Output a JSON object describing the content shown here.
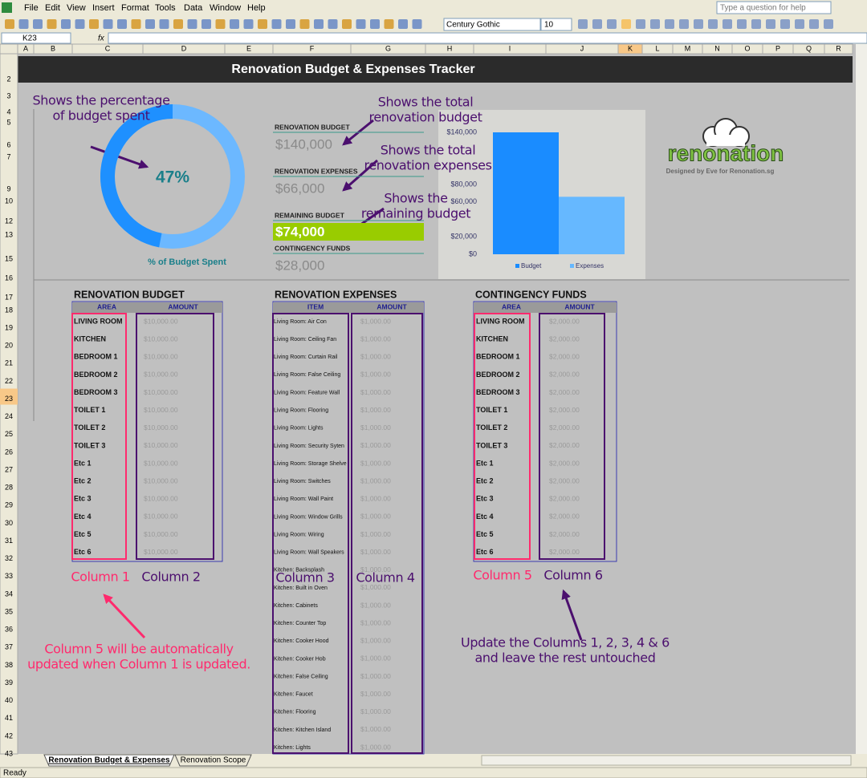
{
  "window": {
    "menu": [
      "File",
      "Edit",
      "View",
      "Insert",
      "Format",
      "Tools",
      "Data",
      "Window",
      "Help"
    ],
    "help_box": "Type a question for help",
    "font_name": "Century Gothic",
    "font_size": "10",
    "name_box": "K23",
    "formula_icon": "fx",
    "status": "Ready",
    "sheet_tabs": [
      "Renovation Budget & Expenses",
      "Renovation Scope"
    ]
  },
  "columns": [
    "A",
    "B",
    "C",
    "D",
    "E",
    "F",
    "G",
    "H",
    "I",
    "J",
    "K",
    "L",
    "M",
    "N",
    "O",
    "P",
    "Q",
    "R"
  ],
  "rows": [
    2,
    3,
    4,
    5,
    6,
    7,
    9,
    10,
    12,
    13,
    15,
    16,
    17,
    18,
    19,
    20,
    21,
    22,
    23,
    24,
    25,
    26,
    27,
    28,
    29,
    30,
    31,
    32,
    33,
    34,
    35,
    36,
    37,
    38,
    39,
    40,
    41,
    42,
    43
  ],
  "title": "Renovation Budget & Expenses Tracker",
  "donut": {
    "value": 47,
    "label": "47%",
    "caption": "% of Budget Spent",
    "color": "#1e90ff",
    "rest_color": "#6cb8ff"
  },
  "summary": [
    {
      "label": "RENOVATION BUDGET",
      "value": "$140,000"
    },
    {
      "label": "RENOVATION EXPENSES",
      "value": "$66,000"
    },
    {
      "label": "REMAINING BUDGET",
      "value": "$74,000"
    },
    {
      "label": "CONTINGENCY FUNDS",
      "value": "$28,000"
    }
  ],
  "bar_chart": {
    "series": [
      {
        "name": "Budget",
        "color": "#1a8cff",
        "value": 140000
      },
      {
        "name": "Expenses",
        "color": "#66b8ff",
        "value": 66000
      }
    ],
    "ylim": [
      0,
      140000
    ],
    "yticks": [
      {
        "value": 0,
        "label": "$0"
      },
      {
        "value": 20000,
        "label": "$20,000"
      },
      {
        "value": 60000,
        "label": "$60,000"
      },
      {
        "value": 80000,
        "label": "$80,000"
      },
      {
        "value": 140000,
        "label": "$140,000"
      }
    ]
  },
  "logo": {
    "name": "renonation",
    "credit": "Designed by Eve for Renonation.sg"
  },
  "tables": [
    {
      "title": "RENOVATION BUDGET",
      "headers": [
        "AREA",
        "AMOUNT"
      ],
      "rows": [
        [
          "LIVING ROOM",
          "$10,000.00"
        ],
        [
          "KITCHEN",
          "$10,000.00"
        ],
        [
          "BEDROOM 1",
          "$10,000.00"
        ],
        [
          "BEDROOM 2",
          "$10,000.00"
        ],
        [
          "BEDROOM 3",
          "$10,000.00"
        ],
        [
          "TOILET 1",
          "$10,000.00"
        ],
        [
          "TOILET 2",
          "$10,000.00"
        ],
        [
          "TOILET 3",
          "$10,000.00"
        ],
        [
          "Etc 1",
          "$10,000.00"
        ],
        [
          "Etc 2",
          "$10,000.00"
        ],
        [
          "Etc 3",
          "$10,000.00"
        ],
        [
          "Etc 4",
          "$10,000.00"
        ],
        [
          "Etc 5",
          "$10,000.00"
        ],
        [
          "Etc 6",
          "$10,000.00"
        ]
      ]
    },
    {
      "title": "RENOVATION EXPENSES",
      "headers": [
        "ITEM",
        "AMOUNT"
      ],
      "rows": [
        [
          "Living Room:  Air Con",
          "$1,000.00"
        ],
        [
          "Living Room:  Ceiling Fan",
          "$1,000.00"
        ],
        [
          "Living Room:  Curtain Rail",
          "$1,000.00"
        ],
        [
          "Living Room: False Ceiling",
          "$1,000.00"
        ],
        [
          "Living Room: Feature Wall",
          "$1,000.00"
        ],
        [
          "Living Room: Flooring",
          "$1,000.00"
        ],
        [
          "Living Room: Lights",
          "$1,000.00"
        ],
        [
          "Living Room: Security Syten",
          "$1,000.00"
        ],
        [
          "Living Room: Storage Shelve",
          "$1,000.00"
        ],
        [
          "Living Room: Switches",
          "$1,000.00"
        ],
        [
          "Living Room: Wall Paint",
          "$1,000.00"
        ],
        [
          "Living Room: Window Grills",
          "$1,000.00"
        ],
        [
          "Living Room: Wiring",
          "$1,000.00"
        ],
        [
          "Living Room: Wall Speakers",
          "$1,000.00"
        ],
        [
          "Kitchen:  Backsplash",
          "$1,000.00"
        ],
        [
          "Kitchen:  Built in Oven",
          "$1,000.00"
        ],
        [
          "Kitchen:  Cabinets",
          "$1,000.00"
        ],
        [
          "Kitchen:  Counter Top",
          "$1,000.00"
        ],
        [
          "Kitchen:  Cooker Hood",
          "$1,000.00"
        ],
        [
          "Kitchen:  Cooker Hob",
          "$1,000.00"
        ],
        [
          "Kitchen: False Ceiling",
          "$1,000.00"
        ],
        [
          "Kitchen: Faucet",
          "$1,000.00"
        ],
        [
          "Kitchen: Flooring",
          "$1,000.00"
        ],
        [
          "Kitchen: Kitchen Island",
          "$1,000.00"
        ],
        [
          "Kitchen: Lights",
          "$1,000.00"
        ]
      ]
    },
    {
      "title": "CONTINGENCY FUNDS",
      "headers": [
        "AREA",
        "AMOUNT"
      ],
      "rows": [
        [
          "LIVING ROOM",
          "$2,000.00"
        ],
        [
          "KITCHEN",
          "$2,000.00"
        ],
        [
          "BEDROOM 1",
          "$2,000.00"
        ],
        [
          "BEDROOM 2",
          "$2,000.00"
        ],
        [
          "BEDROOM 3",
          "$2,000.00"
        ],
        [
          "TOILET 1",
          "$2,000.00"
        ],
        [
          "TOILET 2",
          "$2,000.00"
        ],
        [
          "TOILET 3",
          "$2,000.00"
        ],
        [
          "Etc 1",
          "$2,000.00"
        ],
        [
          "Etc 2",
          "$2,000.00"
        ],
        [
          "Etc 3",
          "$2,000.00"
        ],
        [
          "Etc 4",
          "$2,000.00"
        ],
        [
          "Etc 5",
          "$2,000.00"
        ],
        [
          "Etc 6",
          "$2,000.00"
        ]
      ]
    }
  ],
  "column_labels": [
    "Column 1",
    "Column 2",
    "Column 3",
    "Column 4",
    "Column 5",
    "Column 6"
  ],
  "annotations": [
    [
      "Shows the percentage",
      "of budget spent"
    ],
    [
      "Shows the total",
      "renovation budget"
    ],
    [
      "Shows the total",
      "renovation expenses"
    ],
    [
      "Shows the",
      "remaining budget"
    ],
    [
      "Column 5 will be automatically",
      "updated when Column 1 is updated."
    ],
    [
      "Update the Columns 1, 2, 3, 4 & 6",
      "and leave the rest untouched"
    ]
  ]
}
